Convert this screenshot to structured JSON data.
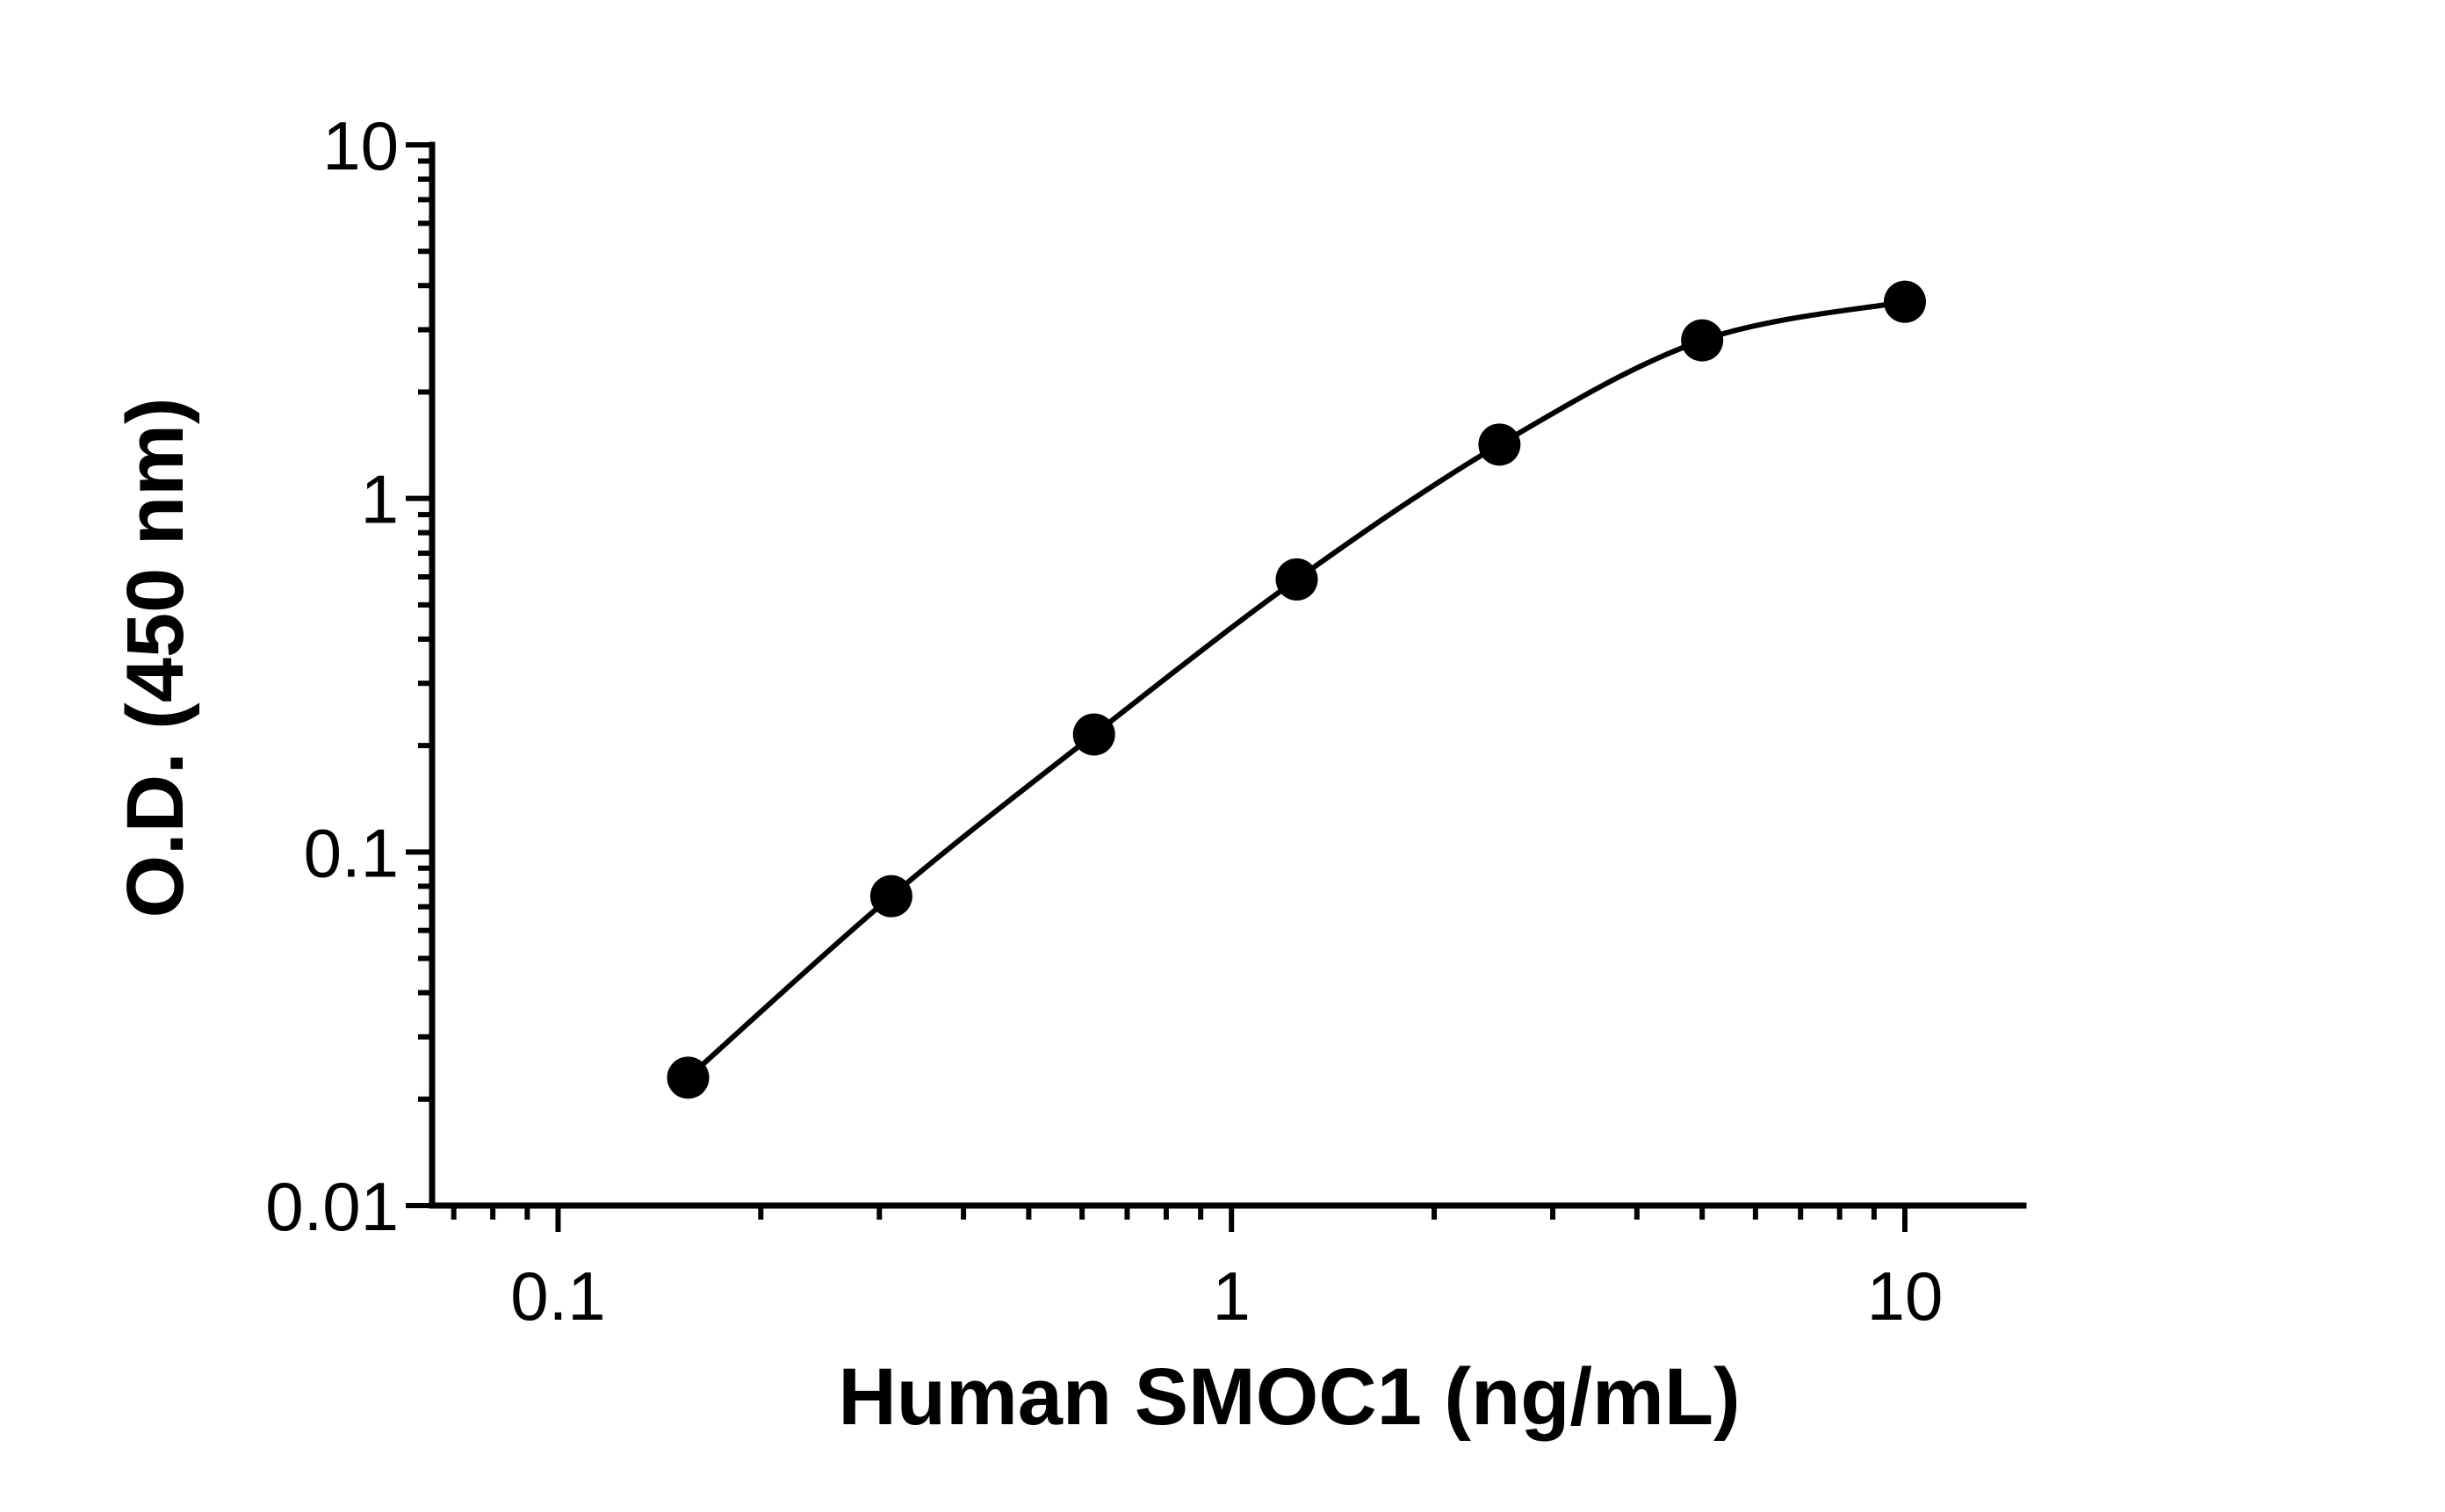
{
  "chart_data": {
    "type": "scatter",
    "xlabel": "Human SMOC1 (ng/mL)",
    "ylabel": "O.D. (450 nm)",
    "x_scale": "log",
    "y_scale": "log",
    "xlim": [
      0.065,
      15
    ],
    "ylim": [
      0.01,
      10
    ],
    "x_ticks": [
      {
        "value": 0.1,
        "label": "0.1"
      },
      {
        "value": 1,
        "label": "1"
      },
      {
        "value": 10,
        "label": "10"
      }
    ],
    "y_ticks": [
      {
        "value": 0.01,
        "label": "0.01"
      },
      {
        "value": 0.1,
        "label": "0.1"
      },
      {
        "value": 1,
        "label": "1"
      },
      {
        "value": 10,
        "label": "10"
      }
    ],
    "grid": false,
    "fit": "4PL curve",
    "series": [
      {
        "x": [
          0.156,
          0.3125,
          0.625,
          1.25,
          2.5,
          5,
          10
        ],
        "y": [
          0.023,
          0.075,
          0.215,
          0.59,
          1.42,
          2.8,
          3.6
        ]
      }
    ]
  }
}
